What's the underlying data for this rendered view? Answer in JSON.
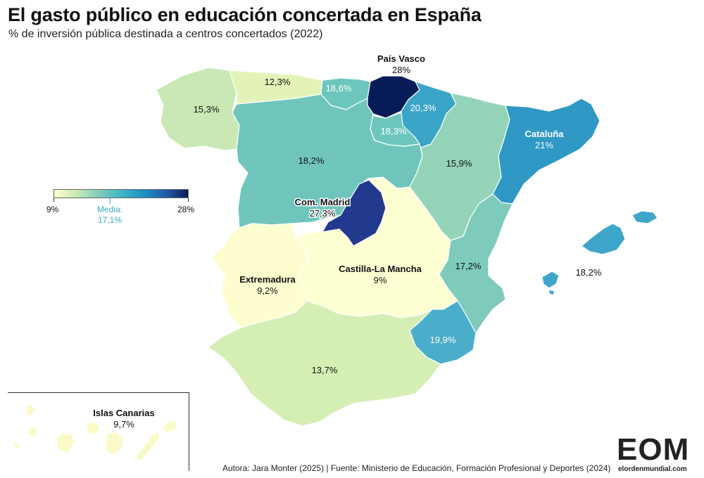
{
  "title": "El gasto público en educación concertada en España",
  "subtitle": "% de inversión pública destinada a centros concertados (2022)",
  "legend": {
    "min_label": "9%",
    "max_label": "28%",
    "mean_label": "Media:",
    "mean_value": "17,1%",
    "min": 9,
    "max": 28,
    "mean": 17.1
  },
  "regions": [
    {
      "id": "galicia",
      "name": "",
      "value": 15.3,
      "label": "15,3%",
      "color": "#c9e8b5"
    },
    {
      "id": "asturias",
      "name": "",
      "value": 12.3,
      "label": "12,3%",
      "color": "#e3f3b8"
    },
    {
      "id": "cantabria",
      "name": "",
      "value": 18.6,
      "label": "18,6%",
      "color": "#6dc6bd"
    },
    {
      "id": "pais-vasco",
      "name": "País Vasco",
      "value": 28,
      "label": "28%",
      "color": "#081d58"
    },
    {
      "id": "navarra",
      "name": "",
      "value": 20.3,
      "label": "20,3%",
      "color": "#3aa5c9"
    },
    {
      "id": "la-rioja",
      "name": "",
      "value": 18.3,
      "label": "18,3%",
      "color": "#6dc6bd"
    },
    {
      "id": "castilla-leon",
      "name": "",
      "value": 18.2,
      "label": "18,2%",
      "color": "#6fc5bc"
    },
    {
      "id": "aragon",
      "name": "",
      "value": 15.9,
      "label": "15,9%",
      "color": "#93d4b9"
    },
    {
      "id": "cataluna",
      "name": "Cataluña",
      "value": 21,
      "label": "21%",
      "color": "#2f98c4"
    },
    {
      "id": "madrid",
      "name": "Com. Madrid",
      "value": 27.3,
      "label": "27,3%",
      "color": "#223a8e"
    },
    {
      "id": "castilla-la-mancha",
      "name": "Castilla-La Mancha",
      "value": 9,
      "label": "9%",
      "color": "#ffffd4"
    },
    {
      "id": "extremadura",
      "name": "Extremadura",
      "value": 9.2,
      "label": "9,2%",
      "color": "#fdfdcf"
    },
    {
      "id": "valencia",
      "name": "",
      "value": 17.2,
      "label": "17,2%",
      "color": "#7fcbbb"
    },
    {
      "id": "murcia",
      "name": "",
      "value": 19.9,
      "label": "19,9%",
      "color": "#4aaecb"
    },
    {
      "id": "andalucia",
      "name": "",
      "value": 13.7,
      "label": "13,7%",
      "color": "#d5eeb4"
    },
    {
      "id": "baleares",
      "name": "",
      "value": 18.2,
      "label": "18,2%",
      "color": "#3ea6c9"
    },
    {
      "id": "canarias",
      "name": "Islas Canarias",
      "value": 9.7,
      "label": "9,7%",
      "color": "#fafac8"
    }
  ],
  "footer": "Autora: Jara Monter (2025) | Fuente: Ministerio de Educación, Formación Profesional y Deportes (2024)",
  "logo": {
    "letters": "EOM",
    "url": "elordenmundial.com"
  }
}
